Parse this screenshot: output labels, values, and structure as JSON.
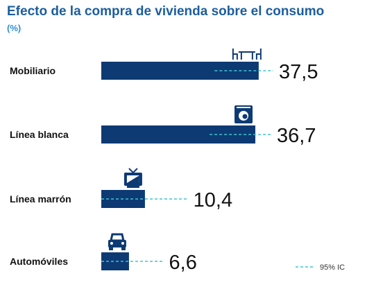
{
  "chart_data": {
    "type": "bar",
    "orientation": "horizontal",
    "title": "Efecto de la compra de vivienda sobre el consumo",
    "subtitle": "(%)",
    "categories": [
      "Mobiliario",
      "Línea blanca",
      "Línea marrón",
      "Automóviles"
    ],
    "series": [
      {
        "values": [
          37.5,
          36.7,
          10.4,
          6.6
        ],
        "labels": [
          "37,5",
          "36,7",
          "10,4",
          "6,6"
        ],
        "ci95_low": [
          27.0,
          25.8,
          0.0,
          0.0
        ],
        "ci95_high": [
          41.0,
          40.5,
          20.6,
          14.8
        ]
      }
    ],
    "xlim": [
      0,
      50
    ],
    "grid": false,
    "legend": {
      "label": "95% IC",
      "position": "bottom-right"
    },
    "icons": [
      "table-chairs-icon",
      "washing-machine-icon",
      "television-icon",
      "car-icon"
    ],
    "colors": {
      "bar": "#0d3a73",
      "ci": "#3fc4cf",
      "title": "#1c5e9c",
      "subtitle": "#2e8fd6",
      "text": "#111111"
    }
  }
}
